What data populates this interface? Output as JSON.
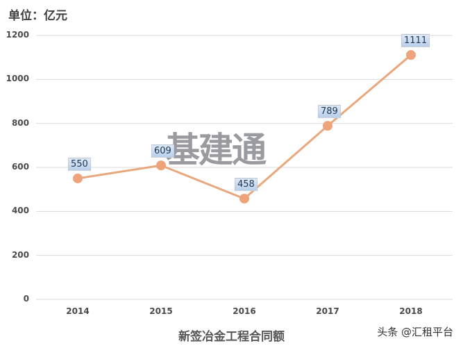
{
  "unit_label": "单位：亿元",
  "watermark": "基建通",
  "credit": "头条 @汇租平台",
  "colors": {
    "line": "#e8a77c",
    "marker": "#eea37a",
    "grid": "#d9d9d9",
    "label_bg": "#c6d9ef"
  },
  "chart_data": {
    "type": "line",
    "title": "",
    "xlabel": "新签冶金工程合同额",
    "ylabel": "单位：亿元",
    "categories": [
      "2014",
      "2015",
      "2016",
      "2017",
      "2018"
    ],
    "series": [
      {
        "name": "新签冶金工程合同额",
        "values": [
          550,
          609,
          458,
          789,
          1111
        ]
      }
    ],
    "data_labels": [
      "550",
      "609",
      "458",
      "789",
      "1111"
    ],
    "yticks": [
      "0",
      "200",
      "400",
      "600",
      "800",
      "1000",
      "1200"
    ],
    "ylim": [
      0,
      1200
    ],
    "grid": true,
    "legend": "none"
  }
}
